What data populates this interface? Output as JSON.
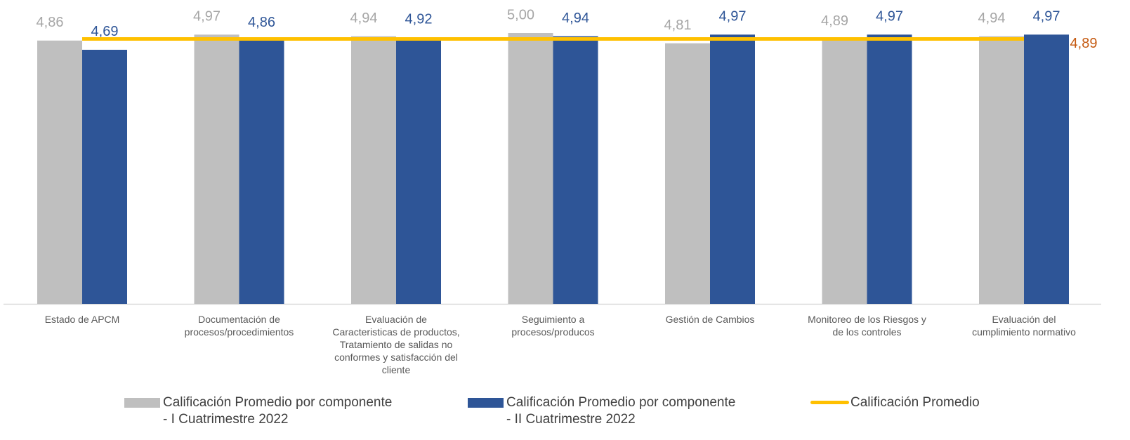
{
  "chart_data": {
    "type": "bar",
    "categories": [
      "Estado de APCM",
      "Documentación de\nprocesos/procedimientos",
      "Evaluación  de\nCaracteristicas de productos,\nTratamiento de salidas no\nconformes y satisfacción del\ncliente",
      "Seguimiento  a\nprocesos/producos",
      "Gestión de Cambios",
      "Monitoreo de los Riesgos  y\nde los controles",
      "Evaluación del\ncumplimiento normativo"
    ],
    "series": [
      {
        "name": "Calificación Promedio por componente\n- I Cuatrimestre 2022",
        "color": "#bfbfbf",
        "label_color": "#a6a6a6",
        "values": [
          4.86,
          4.97,
          4.94,
          5.0,
          4.81,
          4.89,
          4.94
        ],
        "value_labels": [
          "4,86",
          "4,97",
          "4,94",
          "5,00",
          "4,81",
          "4,89",
          "4,94"
        ]
      },
      {
        "name": "Calificación Promedio por componente\n- II Cuatrimestre 2022",
        "color": "#2e5597",
        "label_color": "#2e5597",
        "values": [
          4.69,
          4.86,
          4.92,
          4.94,
          4.97,
          4.97,
          4.97
        ],
        "value_labels": [
          "4,69",
          "4,86",
          "4,92",
          "4,94",
          "4,97",
          "4,97",
          "4,97"
        ]
      },
      {
        "name": "Calificación Promedio",
        "type": "line",
        "color": "#ffc000",
        "label_color": "#c55a11",
        "values": [
          4.89,
          4.89,
          4.89,
          4.89,
          4.89,
          4.89,
          4.89
        ],
        "value_labels": [
          null,
          null,
          null,
          null,
          null,
          null,
          "4,89"
        ]
      }
    ],
    "ylim": [
      0,
      5
    ]
  }
}
